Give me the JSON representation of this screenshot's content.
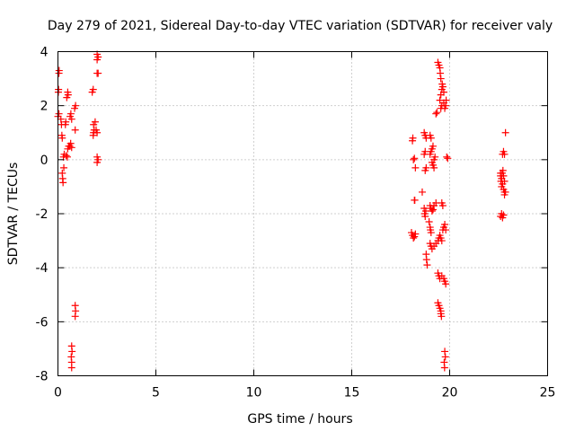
{
  "chart_data": {
    "type": "scatter",
    "title": "Day 279 of 2021, Sidereal Day-to-day VTEC variation (SDTVAR) for receiver valy",
    "xlabel": "GPS time / hours",
    "ylabel": "SDTVAR / TECUs",
    "xlim": [
      0,
      25
    ],
    "ylim": [
      -8,
      4
    ],
    "xticks": [
      0,
      5,
      10,
      15,
      20,
      25
    ],
    "yticks": [
      -8,
      -6,
      -4,
      -2,
      0,
      2,
      4
    ],
    "xtick_labels": [
      "0",
      "5",
      "10",
      "15",
      "20",
      "25"
    ],
    "ytick_labels": [
      "-8",
      "-6",
      "-4",
      "-2",
      "0",
      "2",
      "4"
    ],
    "grid": true,
    "marker": "+",
    "color": "#ff0000",
    "series": [
      {
        "name": "SDTVAR",
        "points": [
          [
            0.0,
            1.6
          ],
          [
            0.05,
            1.7
          ],
          [
            0.02,
            2.5
          ],
          [
            0.03,
            2.6
          ],
          [
            0.05,
            3.2
          ],
          [
            0.06,
            3.3
          ],
          [
            0.15,
            1.5
          ],
          [
            0.18,
            1.3
          ],
          [
            0.2,
            0.9
          ],
          [
            0.22,
            0.8
          ],
          [
            0.22,
            -0.5
          ],
          [
            0.24,
            -0.7
          ],
          [
            0.26,
            -0.85
          ],
          [
            0.3,
            -0.3
          ],
          [
            0.28,
            0.1
          ],
          [
            0.32,
            0.2
          ],
          [
            0.38,
            1.3
          ],
          [
            0.4,
            1.4
          ],
          [
            0.42,
            0.15
          ],
          [
            0.48,
            0.1
          ],
          [
            0.45,
            2.3
          ],
          [
            0.5,
            2.5
          ],
          [
            0.52,
            2.4
          ],
          [
            0.5,
            0.4
          ],
          [
            0.55,
            0.5
          ],
          [
            0.6,
            0.5
          ],
          [
            0.65,
            0.6
          ],
          [
            0.7,
            0.45
          ],
          [
            0.62,
            1.6
          ],
          [
            0.66,
            1.7
          ],
          [
            0.7,
            1.5
          ],
          [
            0.7,
            -6.9
          ],
          [
            0.72,
            -7.1
          ],
          [
            0.68,
            -7.3
          ],
          [
            0.7,
            -7.5
          ],
          [
            0.7,
            -7.7
          ],
          [
            0.85,
            1.9
          ],
          [
            0.9,
            2.0
          ],
          [
            0.88,
            1.1
          ],
          [
            0.88,
            -5.4
          ],
          [
            0.9,
            -5.6
          ],
          [
            0.88,
            -5.8
          ],
          [
            1.75,
            2.5
          ],
          [
            1.8,
            2.6
          ],
          [
            1.82,
            1.0
          ],
          [
            1.8,
            0.9
          ],
          [
            1.85,
            1.1
          ],
          [
            1.82,
            1.3
          ],
          [
            1.9,
            1.4
          ],
          [
            1.95,
            1.1
          ],
          [
            2.0,
            1.0
          ],
          [
            2.0,
            3.7
          ],
          [
            2.05,
            3.8
          ],
          [
            2.0,
            3.9
          ],
          [
            2.0,
            3.2
          ],
          [
            2.05,
            3.2
          ],
          [
            2.0,
            0.1
          ],
          [
            2.05,
            0.0
          ],
          [
            2.0,
            -0.1
          ],
          [
            18.1,
            0.7
          ],
          [
            18.12,
            0.8
          ],
          [
            18.15,
            0.0
          ],
          [
            18.2,
            0.05
          ],
          [
            18.25,
            -0.3
          ],
          [
            18.2,
            -1.5
          ],
          [
            18.22,
            -1.5
          ],
          [
            18.05,
            -2.7
          ],
          [
            18.1,
            -2.8
          ],
          [
            18.15,
            -2.9
          ],
          [
            18.2,
            -2.85
          ],
          [
            18.25,
            -2.75
          ],
          [
            18.6,
            -1.2
          ],
          [
            18.7,
            1.0
          ],
          [
            18.75,
            0.9
          ],
          [
            18.8,
            0.8
          ],
          [
            18.7,
            0.2
          ],
          [
            18.75,
            0.3
          ],
          [
            18.8,
            -0.3
          ],
          [
            18.75,
            -0.4
          ],
          [
            18.7,
            -1.8
          ],
          [
            18.72,
            -2.0
          ],
          [
            18.75,
            -2.1
          ],
          [
            18.78,
            -1.9
          ],
          [
            18.8,
            -3.5
          ],
          [
            18.82,
            -3.7
          ],
          [
            18.85,
            -3.9
          ],
          [
            18.95,
            -2.3
          ],
          [
            19.0,
            -2.5
          ],
          [
            19.02,
            -2.6
          ],
          [
            19.05,
            -2.7
          ],
          [
            19.0,
            -1.7
          ],
          [
            19.05,
            -1.8
          ],
          [
            19.1,
            -1.9
          ],
          [
            19.15,
            -1.85
          ],
          [
            19.2,
            -1.7
          ],
          [
            19.3,
            -1.6
          ],
          [
            19.0,
            -3.1
          ],
          [
            19.05,
            -3.2
          ],
          [
            19.1,
            -3.3
          ],
          [
            19.2,
            -3.2
          ],
          [
            19.3,
            -3.1
          ],
          [
            19.4,
            -3.0
          ],
          [
            19.45,
            -2.9
          ],
          [
            19.0,
            0.2
          ],
          [
            19.05,
            0.3
          ],
          [
            19.1,
            0.4
          ],
          [
            19.15,
            0.5
          ],
          [
            19.0,
            0.9
          ],
          [
            19.05,
            0.8
          ],
          [
            19.1,
            -0.1
          ],
          [
            19.15,
            -0.2
          ],
          [
            19.2,
            -0.3
          ],
          [
            19.2,
            0.0
          ],
          [
            19.25,
            0.1
          ],
          [
            19.3,
            1.7
          ],
          [
            19.35,
            1.75
          ],
          [
            19.4,
            3.6
          ],
          [
            19.45,
            3.5
          ],
          [
            19.5,
            3.4
          ],
          [
            19.52,
            3.2
          ],
          [
            19.55,
            3.0
          ],
          [
            19.5,
            2.2
          ],
          [
            19.55,
            2.4
          ],
          [
            19.6,
            2.6
          ],
          [
            19.62,
            2.8
          ],
          [
            19.65,
            2.7
          ],
          [
            19.7,
            2.5
          ],
          [
            19.55,
            1.9
          ],
          [
            19.6,
            2.0
          ],
          [
            19.7,
            2.1
          ],
          [
            19.75,
            1.9
          ],
          [
            19.8,
            2.0
          ],
          [
            19.82,
            2.2
          ],
          [
            19.4,
            -4.2
          ],
          [
            19.45,
            -4.3
          ],
          [
            19.5,
            -4.4
          ],
          [
            19.6,
            -4.3
          ],
          [
            19.7,
            -4.4
          ],
          [
            19.75,
            -4.5
          ],
          [
            19.8,
            -4.6
          ],
          [
            19.4,
            -5.3
          ],
          [
            19.45,
            -5.4
          ],
          [
            19.5,
            -5.5
          ],
          [
            19.55,
            -5.6
          ],
          [
            19.55,
            -5.7
          ],
          [
            19.58,
            -5.8
          ],
          [
            19.5,
            -2.8
          ],
          [
            19.55,
            -2.9
          ],
          [
            19.6,
            -3.0
          ],
          [
            19.65,
            -2.6
          ],
          [
            19.7,
            -2.5
          ],
          [
            19.75,
            -2.4
          ],
          [
            19.8,
            -2.6
          ],
          [
            19.6,
            -1.6
          ],
          [
            19.65,
            -1.7
          ],
          [
            19.75,
            -7.1
          ],
          [
            19.78,
            -7.3
          ],
          [
            19.72,
            -7.5
          ],
          [
            19.74,
            -7.7
          ],
          [
            19.85,
            0.1
          ],
          [
            19.9,
            0.05
          ],
          [
            22.6,
            -2.1
          ],
          [
            22.65,
            -2.0
          ],
          [
            22.7,
            -2.15
          ],
          [
            22.75,
            -2.05
          ],
          [
            22.6,
            -0.6
          ],
          [
            22.62,
            -0.8
          ],
          [
            22.65,
            -1.0
          ],
          [
            22.7,
            -0.9
          ],
          [
            22.75,
            -1.1
          ],
          [
            22.8,
            -1.2
          ],
          [
            22.6,
            -0.5
          ],
          [
            22.65,
            -0.7
          ],
          [
            22.68,
            -0.5
          ],
          [
            22.72,
            -0.4
          ],
          [
            22.75,
            -0.6
          ],
          [
            22.8,
            -0.8
          ],
          [
            22.7,
            0.2
          ],
          [
            22.75,
            0.3
          ],
          [
            22.8,
            0.2
          ],
          [
            22.8,
            -1.3
          ],
          [
            22.85,
            -1.2
          ],
          [
            22.85,
            1.0
          ]
        ]
      }
    ]
  }
}
